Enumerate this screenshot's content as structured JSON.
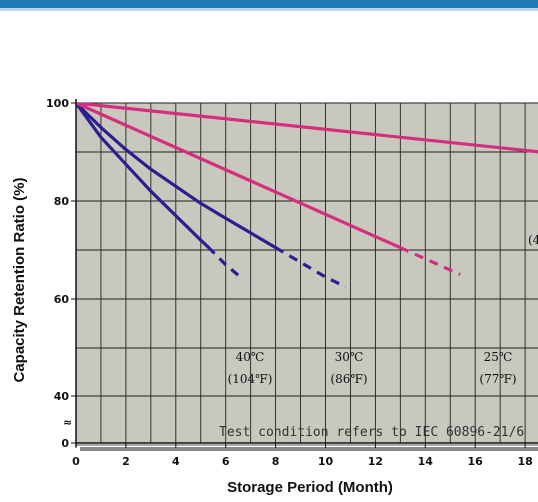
{
  "chart_data": {
    "type": "line",
    "xlabel": "Storage Period (Month)",
    "ylabel": "Capacity Retention Ratio (%)",
    "x_ticks": [
      "0",
      "2",
      "4",
      "6",
      "8",
      "10",
      "12",
      "14",
      "16",
      "18"
    ],
    "y_ticks": [
      "0",
      "40",
      "60",
      "80",
      "100"
    ],
    "y_break": "≈",
    "grid": true,
    "annotation": "Test condition refers to IEC 60896-21/6",
    "colors": {
      "plot_bg": "#c8c8be",
      "hot": "#2b1f8f",
      "mild": "#d42f7d",
      "grid": "#222222"
    },
    "series": [
      {
        "label_line1": "40℃",
        "label_line2": "(104℉)",
        "color": "#2b1f8f",
        "solid": [
          [
            0,
            100
          ],
          [
            1,
            93
          ],
          [
            2,
            87.5
          ],
          [
            3,
            82
          ],
          [
            4,
            77
          ],
          [
            5,
            72
          ],
          [
            5.3,
            70.6
          ]
        ],
        "dashed": [
          [
            5.3,
            70.6
          ],
          [
            6,
            67
          ],
          [
            6.7,
            64
          ]
        ]
      },
      {
        "label_line1": "30℃",
        "label_line2": "(86℉)",
        "color": "#2b1f8f",
        "solid": [
          [
            0,
            100
          ],
          [
            1,
            95
          ],
          [
            2,
            90.5
          ],
          [
            3,
            86.5
          ],
          [
            4,
            83
          ],
          [
            5,
            79.5
          ],
          [
            6,
            76.5
          ],
          [
            7,
            73.5
          ],
          [
            8,
            70.5
          ]
        ],
        "dashed": [
          [
            8,
            70.5
          ],
          [
            9,
            67.5
          ],
          [
            10,
            64.5
          ],
          [
            10.8,
            62.5
          ]
        ]
      },
      {
        "label_line1": "25℃",
        "label_line2": "(77℉)",
        "color": "#d42f7d",
        "solid": [
          [
            0,
            100
          ],
          [
            13,
            70.5
          ]
        ],
        "dashed": [
          [
            13,
            70.5
          ],
          [
            15.4,
            65
          ]
        ]
      },
      {
        "label_line1": "(4",
        "label_line2": "",
        "color": "#d42f7d",
        "solid": [
          [
            0,
            100
          ],
          [
            19,
            89.8
          ]
        ],
        "dashed": []
      }
    ]
  }
}
